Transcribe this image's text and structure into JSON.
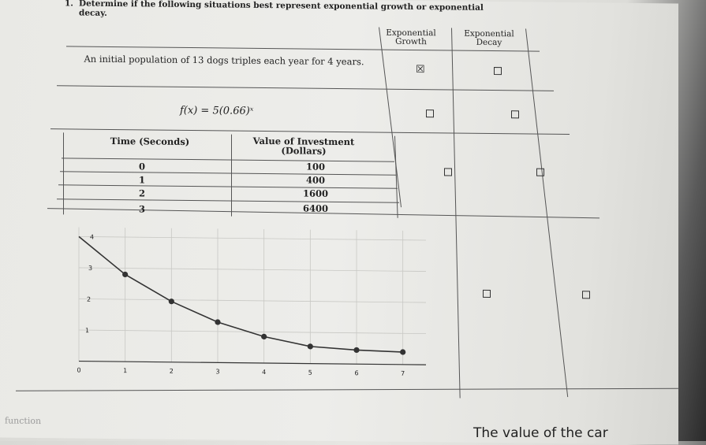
{
  "question": {
    "number": "1.",
    "text": "Determine if the following situations best represent exponential growth or exponential decay."
  },
  "headers": {
    "growth": "Exponential Growth",
    "decay": "Exponential Decay"
  },
  "rows": [
    {
      "situation": "An initial population of 13 dogs triples each year for 4 years.",
      "growth_checked": true,
      "decay_checked": false
    },
    {
      "formula": "f(x) = 5(0.66)ˣ",
      "growth_checked": false,
      "decay_checked": false
    },
    {
      "growth_checked": false,
      "decay_checked": false
    },
    {
      "growth_checked": false,
      "decay_checked": false
    }
  ],
  "investment_table": {
    "col1": "Time (Seconds)",
    "col2": "Value of Investment (Dollars)",
    "rows": [
      {
        "t": "0",
        "v": "100"
      },
      {
        "t": "1",
        "v": "400"
      },
      {
        "t": "2",
        "v": "1600"
      },
      {
        "t": "3",
        "v": "6400"
      }
    ]
  },
  "chart_data": {
    "type": "scatter",
    "x": [
      0,
      1,
      2,
      3,
      4,
      5,
      6,
      7
    ],
    "y": [
      4,
      2.8,
      1.95,
      1.3,
      0.85,
      0.55,
      0.45,
      0.4
    ],
    "x_ticks": [
      "0",
      "1",
      "2",
      "3",
      "4",
      "5",
      "6",
      "7"
    ],
    "y_ticks": [
      "1",
      "2",
      "3",
      "4"
    ],
    "xlim": [
      0,
      7.5
    ],
    "ylim": [
      0,
      4.3
    ],
    "grid": true
  },
  "bottom_text": "The value of the car",
  "faint_text": "function"
}
